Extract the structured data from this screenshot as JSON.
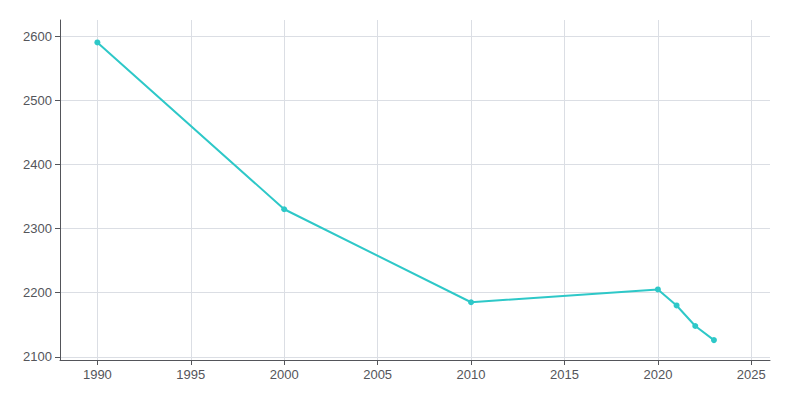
{
  "chart_data": {
    "type": "line",
    "x": [
      1990,
      2000,
      2010,
      2020,
      2021,
      2022,
      2023
    ],
    "values": [
      2590,
      2330,
      2185,
      2205,
      2180,
      2148,
      2126
    ],
    "color": "#2ec8c8",
    "marker": "circle",
    "xlim": [
      1988,
      2026
    ],
    "xticks": [
      1990,
      1995,
      2000,
      2005,
      2010,
      2015,
      2020,
      2025
    ],
    "ylim": [
      2095,
      2625
    ],
    "yticks": [
      2100,
      2200,
      2300,
      2400,
      2500,
      2600
    ],
    "grid": true
  }
}
